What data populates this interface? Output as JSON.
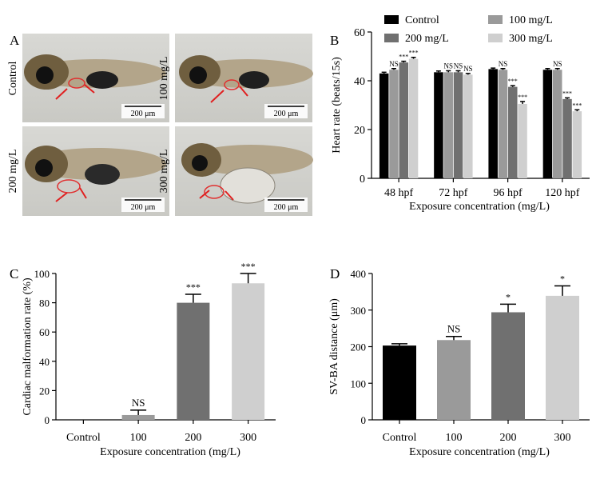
{
  "panels": {
    "A": {
      "letter": "A",
      "images": [
        {
          "label": "Control",
          "scale": "200 μm"
        },
        {
          "label": "100 mg/L",
          "scale": "200 μm"
        },
        {
          "label": "200 mg/L",
          "scale": "200 μm"
        },
        {
          "label": "300 mg/L",
          "scale": "200 μm"
        }
      ]
    }
  },
  "chart_data": [
    {
      "panel": "B",
      "type": "bar",
      "title": "",
      "xlabel": "Exposure concentration (mg/L)",
      "ylabel": "Heart rate (beats/15s)",
      "ylim": [
        0,
        60
      ],
      "yticks": [
        0,
        20,
        40,
        60
      ],
      "categories": [
        "48 hpf",
        "72 hpf",
        "96 hpf",
        "120 hpf"
      ],
      "legend_position": "top",
      "series": [
        {
          "name": "Control",
          "color": "#000000",
          "values": [
            43,
            43.5,
            44.8,
            44.5
          ],
          "errors": [
            0.5,
            0.5,
            0.4,
            0.5
          ],
          "annotations": [
            "",
            "",
            "",
            ""
          ]
        },
        {
          "name": "100 mg/L",
          "color": "#9a9a9a",
          "values": [
            44.5,
            43.5,
            44.5,
            44.5
          ],
          "errors": [
            0.5,
            0.6,
            0.5,
            0.5
          ],
          "annotations": [
            "NS",
            "NS",
            "NS",
            "NS"
          ]
        },
        {
          "name": "200 mg/L",
          "color": "#707070",
          "values": [
            47.5,
            43.5,
            37.5,
            32.5
          ],
          "errors": [
            0.5,
            0.6,
            0.5,
            0.5
          ],
          "annotations": [
            "***",
            "NS",
            "***",
            "***"
          ]
        },
        {
          "name": "300 mg/L",
          "color": "#cfcfcf",
          "values": [
            49,
            42.5,
            30.5,
            27.5
          ],
          "errors": [
            0.6,
            0.5,
            1,
            0.6
          ],
          "annotations": [
            "***",
            "NS",
            "***",
            "***"
          ]
        }
      ]
    },
    {
      "panel": "C",
      "type": "bar",
      "title": "",
      "xlabel": "Exposure concentration (mg/L)",
      "ylabel": "Cardiac malformation rate (%)",
      "ylim": [
        0,
        100
      ],
      "yticks": [
        0,
        20,
        40,
        60,
        80,
        100
      ],
      "categories": [
        "Control",
        "100",
        "200",
        "300"
      ],
      "values": [
        0,
        3.3,
        80,
        93.3
      ],
      "errors": [
        0,
        3.3,
        5.8,
        6.7
      ],
      "colors": [
        "#000000",
        "#9a9a9a",
        "#707070",
        "#cfcfcf"
      ],
      "annotations": [
        "",
        "NS",
        "***",
        "***"
      ]
    },
    {
      "panel": "D",
      "type": "bar",
      "title": "",
      "xlabel": "Exposure concentration (mg/L)",
      "ylabel": "SV-BA distance (μm)",
      "ylim": [
        0,
        400
      ],
      "yticks": [
        0,
        100,
        200,
        300,
        400
      ],
      "categories": [
        "Control",
        "100",
        "200",
        "300"
      ],
      "values": [
        203,
        218,
        294,
        339
      ],
      "errors": [
        5,
        10,
        22,
        27
      ],
      "colors": [
        "#000000",
        "#9a9a9a",
        "#707070",
        "#cfcfcf"
      ],
      "annotations": [
        "",
        "NS",
        "*",
        "*"
      ]
    }
  ]
}
